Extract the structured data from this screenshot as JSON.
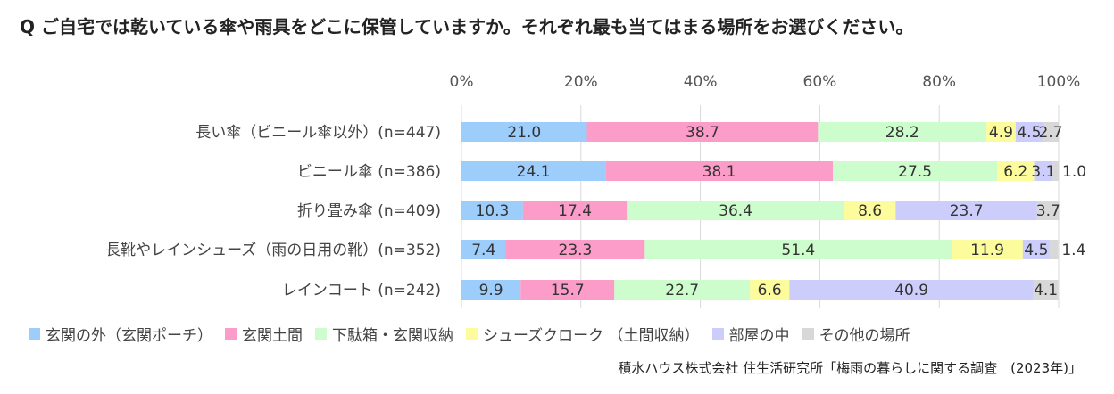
{
  "question": "Q  ご自宅では乾いている傘や雨具をどこに保管していますか。それぞれ最も当てはまる場所をお選びください。",
  "source": "積水ハウス株式会社 住生活研究所「梅雨の暮らしに関する調査　(2023年)」",
  "chart_data": {
    "type": "bar",
    "orientation": "horizontal",
    "stacked": true,
    "xlim": [
      0,
      100
    ],
    "ticks": [
      0,
      20,
      40,
      60,
      80,
      100
    ],
    "tick_labels": [
      "0%",
      "20%",
      "40%",
      "60%",
      "80%",
      "100%"
    ],
    "grid": true,
    "legend_position": "bottom",
    "categories": [
      "長い傘（ビニール傘以外）(n=447)",
      "ビニール傘 (n=386)",
      "折り畳み傘 (n=409)",
      "長靴やレインシューズ（雨の日用の靴）(n=352)",
      "レインコート (n=242)"
    ],
    "series": [
      {
        "name": "玄関の外（玄関ポーチ）",
        "color": "#9dcdfb",
        "values": [
          21.0,
          24.1,
          10.3,
          7.4,
          9.9
        ]
      },
      {
        "name": "玄関土間",
        "color": "#fc9cc8",
        "values": [
          38.7,
          38.1,
          17.4,
          23.3,
          15.7
        ]
      },
      {
        "name": "下駄箱・玄関収納",
        "color": "#cdfccd",
        "values": [
          28.2,
          27.5,
          36.4,
          51.4,
          22.7
        ]
      },
      {
        "name": "シューズクローク （土間収納）",
        "color": "#fcfc9d",
        "values": [
          4.9,
          6.2,
          8.6,
          11.9,
          6.6
        ]
      },
      {
        "name": "部屋の中",
        "color": "#cdcdfb",
        "values": [
          4.5,
          3.1,
          23.7,
          4.5,
          40.9
        ]
      },
      {
        "name": "その他の場所",
        "color": "#d8d8d8",
        "values": [
          2.7,
          1.0,
          3.7,
          1.4,
          4.1
        ]
      }
    ]
  }
}
